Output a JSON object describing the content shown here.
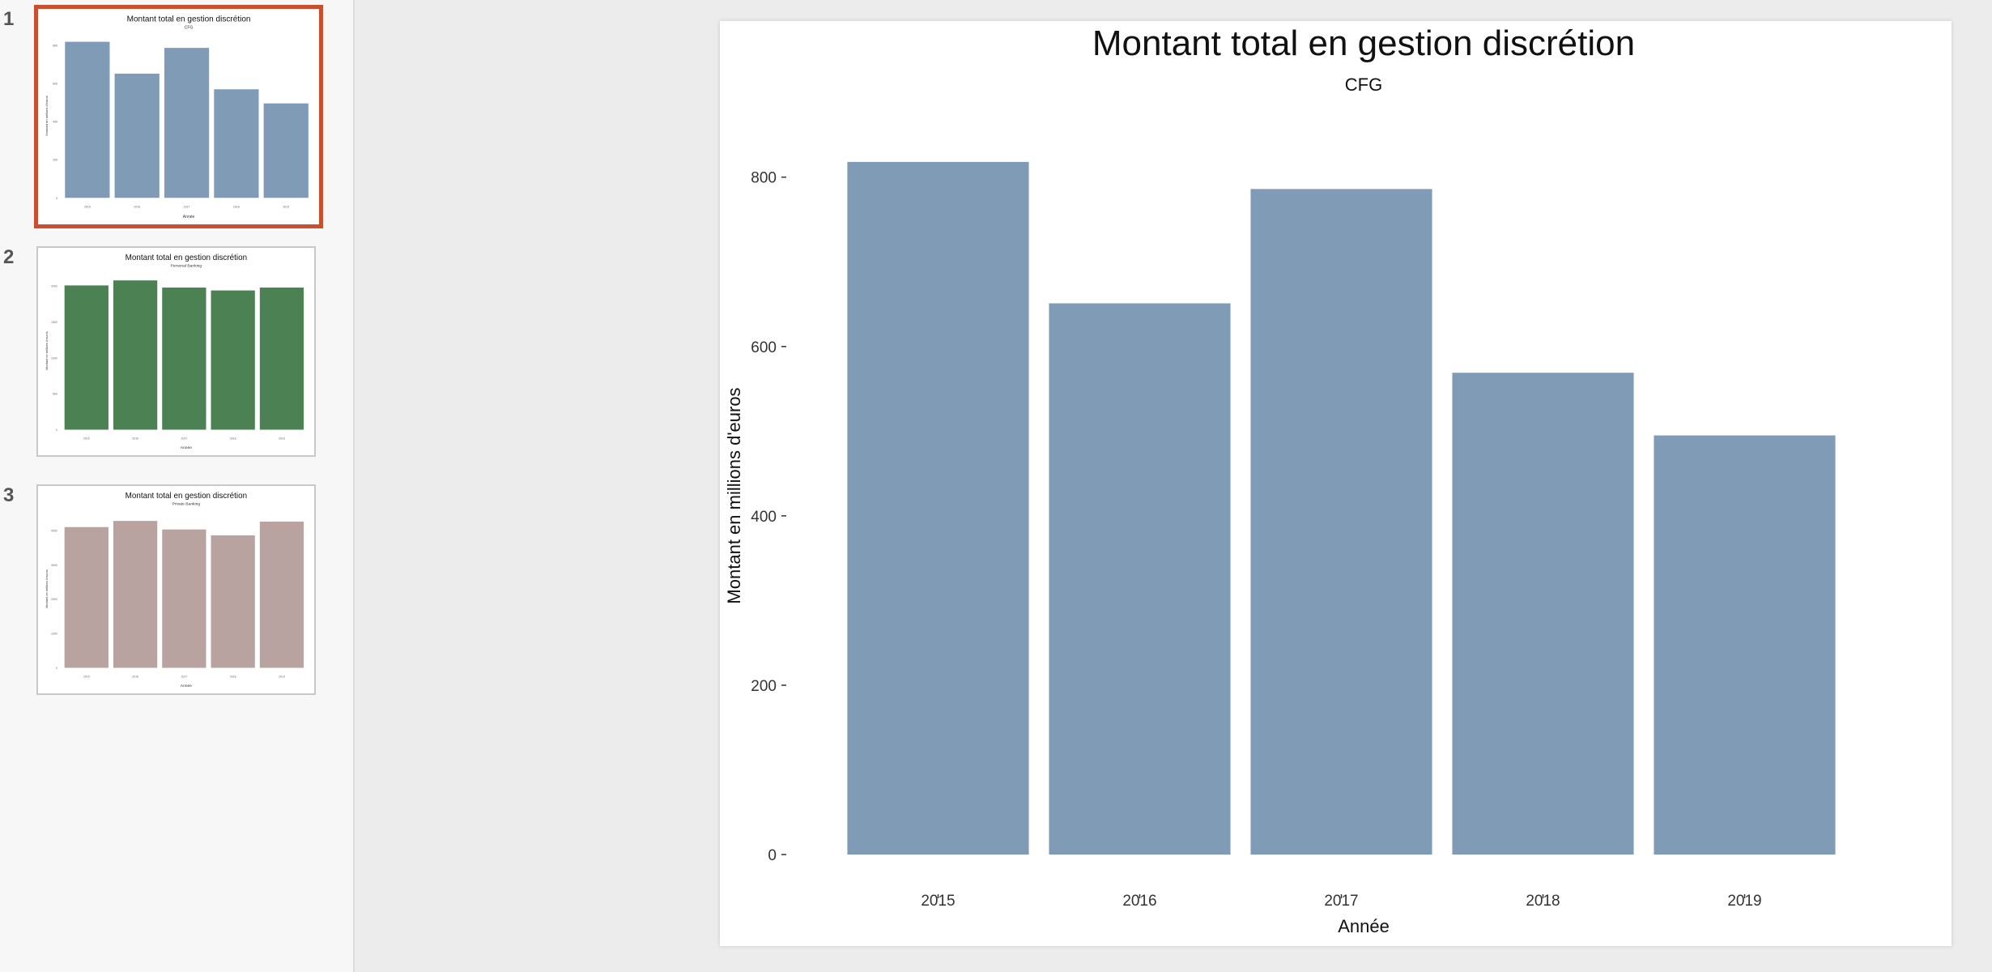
{
  "colors": {
    "active_border": "#c9502f"
  },
  "slides": [
    {
      "number": "1",
      "active": true,
      "title": "Montant total en gestion discrétion",
      "subtitle": "CFG",
      "color": "#7f9bb5",
      "xlabel": "Année",
      "ylabel": "Montant en millions d'euros",
      "categories": [
        "2015",
        "2016",
        "2017",
        "2018",
        "2019"
      ],
      "values": [
        818,
        651,
        786,
        569,
        495
      ],
      "ylim": [
        0,
        860
      ],
      "ticks": [
        0,
        200,
        400,
        600,
        800
      ]
    },
    {
      "number": "2",
      "active": false,
      "title": "Montant total en gestion discrétion",
      "subtitle": "Personal Banking",
      "color": "#4b8153",
      "xlabel": "Année",
      "ylabel": "Montant en millions d'euros",
      "categories": [
        "2015",
        "2016",
        "2017",
        "2018",
        "2019"
      ],
      "values": [
        2010,
        2080,
        1980,
        1940,
        1980
      ],
      "ylim": [
        0,
        2200
      ],
      "ticks": [
        0,
        500,
        1000,
        1500,
        2000
      ]
    },
    {
      "number": "3",
      "active": false,
      "title": "Montant total en gestion discrétion",
      "subtitle": "Private Banking",
      "color": "#b9a3a0",
      "xlabel": "Année",
      "ylabel": "Montant en millions d'euros",
      "categories": [
        "2015",
        "2016",
        "2017",
        "2018",
        "2019"
      ],
      "values": [
        4100,
        4280,
        4030,
        3860,
        4260
      ],
      "ylim": [
        0,
        4600
      ],
      "ticks": [
        0,
        1000,
        2000,
        3000,
        4000
      ]
    }
  ],
  "chart_data": {
    "type": "bar",
    "title": "Montant total en gestion discrétion",
    "subtitle": "CFG",
    "xlabel": "Année",
    "ylabel": "Montant en millions d'euros",
    "categories": [
      "2015",
      "2016",
      "2017",
      "2018",
      "2019"
    ],
    "values": [
      818,
      651,
      786,
      569,
      495
    ],
    "ylim": [
      0,
      860
    ],
    "yticks": [
      0,
      200,
      400,
      600,
      800
    ],
    "color": "#7f9bb5",
    "grid": false
  }
}
